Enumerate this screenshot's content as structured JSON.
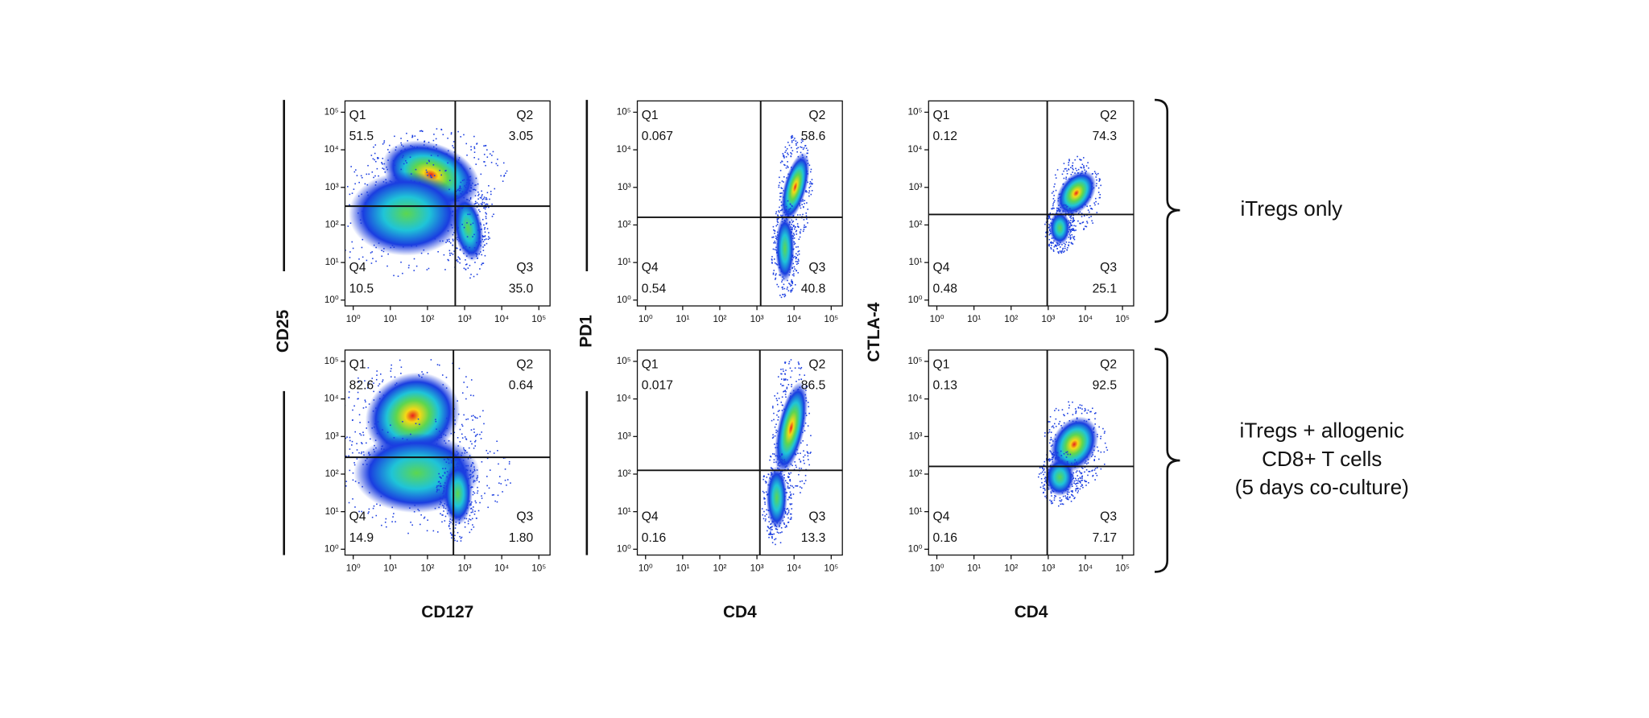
{
  "columns": [
    {
      "xlabel": "CD127",
      "ylabel": "CD25"
    },
    {
      "xlabel": "CD4",
      "ylabel": "PD1"
    },
    {
      "xlabel": "CD4",
      "ylabel": "CTLA-4"
    }
  ],
  "row_labels": [
    [
      "iTregs only"
    ],
    [
      "iTregs + allogenic",
      "CD8+ T cells",
      "(5 days co-culture)"
    ]
  ],
  "chart_data": [
    {
      "type": "quadrant",
      "xscale": "log",
      "yscale": "log",
      "xlim": [
        0.6,
        200000
      ],
      "ylim": [
        0.7,
        200000
      ],
      "xticks": [
        {
          "value": 1,
          "label": "10⁰"
        },
        {
          "value": 10,
          "label": "10¹"
        },
        {
          "value": 100,
          "label": "10²"
        },
        {
          "value": 1000,
          "label": "10³"
        },
        {
          "value": 10000,
          "label": "10⁴"
        },
        {
          "value": 100000,
          "label": "10⁵"
        }
      ],
      "yticks": [
        {
          "value": 1,
          "label": "10⁰"
        },
        {
          "value": 10,
          "label": "10¹"
        },
        {
          "value": 100,
          "label": "10²"
        },
        {
          "value": 1000,
          "label": "10³"
        },
        {
          "value": 10000,
          "label": "10⁴"
        },
        {
          "value": 100000,
          "label": "10⁵"
        }
      ],
      "gate": {
        "x": 560,
        "y": 316
      },
      "quadrants": [
        "Q1",
        "Q2",
        "Q3",
        "Q4"
      ],
      "values": [
        51.5,
        3.05,
        35.0,
        10.5
      ],
      "value_labels": [
        "51.5",
        "3.05",
        "35.0",
        "10.5"
      ]
    },
    {
      "type": "quadrant",
      "xscale": "log",
      "yscale": "log",
      "xlim": [
        0.6,
        200000
      ],
      "ylim": [
        0.7,
        200000
      ],
      "xticks": [
        {
          "value": 1,
          "label": "10⁰"
        },
        {
          "value": 10,
          "label": "10¹"
        },
        {
          "value": 100,
          "label": "10²"
        },
        {
          "value": 1000,
          "label": "10³"
        },
        {
          "value": 10000,
          "label": "10⁴"
        },
        {
          "value": 100000,
          "label": "10⁵"
        }
      ],
      "yticks": [
        {
          "value": 1,
          "label": "10⁰"
        },
        {
          "value": 10,
          "label": "10¹"
        },
        {
          "value": 100,
          "label": "10²"
        },
        {
          "value": 1000,
          "label": "10³"
        },
        {
          "value": 10000,
          "label": "10⁴"
        },
        {
          "value": 100000,
          "label": "10⁵"
        }
      ],
      "gate": {
        "x": 1260,
        "y": 160
      },
      "quadrants": [
        "Q1",
        "Q2",
        "Q3",
        "Q4"
      ],
      "values": [
        0.067,
        58.6,
        40.8,
        0.54
      ],
      "value_labels": [
        "0.067",
        "58.6",
        "40.8",
        "0.54"
      ]
    },
    {
      "type": "quadrant",
      "xscale": "log",
      "yscale": "log",
      "xlim": [
        0.6,
        200000
      ],
      "ylim": [
        0.7,
        200000
      ],
      "xticks": [
        {
          "value": 1,
          "label": "10⁰"
        },
        {
          "value": 10,
          "label": "10¹"
        },
        {
          "value": 100,
          "label": "10²"
        },
        {
          "value": 1000,
          "label": "10³"
        },
        {
          "value": 10000,
          "label": "10⁴"
        },
        {
          "value": 100000,
          "label": "10⁵"
        }
      ],
      "yticks": [
        {
          "value": 1,
          "label": "10⁰"
        },
        {
          "value": 10,
          "label": "10¹"
        },
        {
          "value": 100,
          "label": "10²"
        },
        {
          "value": 1000,
          "label": "10³"
        },
        {
          "value": 10000,
          "label": "10⁴"
        },
        {
          "value": 100000,
          "label": "10⁵"
        }
      ],
      "gate": {
        "x": 940,
        "y": 190
      },
      "quadrants": [
        "Q1",
        "Q2",
        "Q3",
        "Q4"
      ],
      "values": [
        0.12,
        74.3,
        25.1,
        0.48
      ],
      "value_labels": [
        "0.12",
        "74.3",
        "25.1",
        "0.48"
      ]
    },
    {
      "type": "quadrant",
      "xscale": "log",
      "yscale": "log",
      "xlim": [
        0.6,
        200000
      ],
      "ylim": [
        0.7,
        200000
      ],
      "xticks": [
        {
          "value": 1,
          "label": "10⁰"
        },
        {
          "value": 10,
          "label": "10¹"
        },
        {
          "value": 100,
          "label": "10²"
        },
        {
          "value": 1000,
          "label": "10³"
        },
        {
          "value": 10000,
          "label": "10⁴"
        },
        {
          "value": 100000,
          "label": "10⁵"
        }
      ],
      "yticks": [
        {
          "value": 1,
          "label": "10⁰"
        },
        {
          "value": 10,
          "label": "10¹"
        },
        {
          "value": 100,
          "label": "10²"
        },
        {
          "value": 1000,
          "label": "10³"
        },
        {
          "value": 10000,
          "label": "10⁴"
        },
        {
          "value": 100000,
          "label": "10⁵"
        }
      ],
      "gate": {
        "x": 500,
        "y": 280
      },
      "quadrants": [
        "Q1",
        "Q2",
        "Q3",
        "Q4"
      ],
      "values": [
        82.6,
        0.64,
        1.8,
        14.9
      ],
      "value_labels": [
        "82.6",
        "0.64",
        "1.80",
        "14.9"
      ]
    },
    {
      "type": "quadrant",
      "xscale": "log",
      "yscale": "log",
      "xlim": [
        0.6,
        200000
      ],
      "ylim": [
        0.7,
        200000
      ],
      "xticks": [
        {
          "value": 1,
          "label": "10⁰"
        },
        {
          "value": 10,
          "label": "10¹"
        },
        {
          "value": 100,
          "label": "10²"
        },
        {
          "value": 1000,
          "label": "10³"
        },
        {
          "value": 10000,
          "label": "10⁴"
        },
        {
          "value": 100000,
          "label": "10⁵"
        }
      ],
      "yticks": [
        {
          "value": 1,
          "label": "10⁰"
        },
        {
          "value": 10,
          "label": "10¹"
        },
        {
          "value": 100,
          "label": "10²"
        },
        {
          "value": 1000,
          "label": "10³"
        },
        {
          "value": 10000,
          "label": "10⁴"
        },
        {
          "value": 100000,
          "label": "10⁵"
        }
      ],
      "gate": {
        "x": 1200,
        "y": 126
      },
      "quadrants": [
        "Q1",
        "Q2",
        "Q3",
        "Q4"
      ],
      "values": [
        0.017,
        86.5,
        13.3,
        0.16
      ],
      "value_labels": [
        "0.017",
        "86.5",
        "13.3",
        "0.16"
      ]
    },
    {
      "type": "quadrant",
      "xscale": "log",
      "yscale": "log",
      "xlim": [
        0.6,
        200000
      ],
      "ylim": [
        0.7,
        200000
      ],
      "xticks": [
        {
          "value": 1,
          "label": "10⁰"
        },
        {
          "value": 10,
          "label": "10¹"
        },
        {
          "value": 100,
          "label": "10²"
        },
        {
          "value": 1000,
          "label": "10³"
        },
        {
          "value": 10000,
          "label": "10⁴"
        },
        {
          "value": 100000,
          "label": "10⁵"
        }
      ],
      "yticks": [
        {
          "value": 1,
          "label": "10⁰"
        },
        {
          "value": 10,
          "label": "10¹"
        },
        {
          "value": 100,
          "label": "10²"
        },
        {
          "value": 1000,
          "label": "10³"
        },
        {
          "value": 10000,
          "label": "10⁴"
        },
        {
          "value": 100000,
          "label": "10⁵"
        }
      ],
      "gate": {
        "x": 940,
        "y": 160
      },
      "quadrants": [
        "Q1",
        "Q2",
        "Q3",
        "Q4"
      ],
      "values": [
        0.13,
        92.5,
        7.17,
        0.16
      ],
      "value_labels": [
        "0.13",
        "92.5",
        "7.17",
        "0.16"
      ]
    }
  ]
}
